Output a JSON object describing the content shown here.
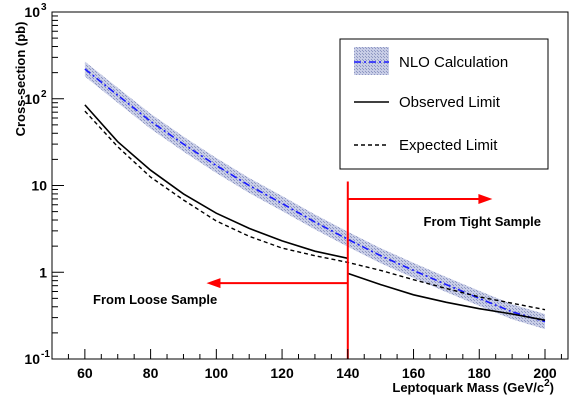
{
  "chart_data": {
    "type": "line",
    "xlabel": "Leptoquark Mass (GeV/c",
    "xlabel_sup": "2",
    "xlabel_close": ")",
    "ylabel": "Cross-section (pb)",
    "xlim": [
      50,
      207
    ],
    "ylim": [
      0.1,
      1000
    ],
    "y_scale": "log",
    "x_ticks": [
      60,
      80,
      100,
      120,
      140,
      160,
      180,
      200
    ],
    "x_tick_labels": [
      "60",
      "80",
      "100",
      "120",
      "140",
      "160",
      "180",
      "200"
    ],
    "y_ticks": [
      {
        "value": 0.1,
        "base": "10",
        "exp": "-1"
      },
      {
        "value": 1,
        "base": "1",
        "exp": ""
      },
      {
        "value": 10,
        "base": "10",
        "exp": ""
      },
      {
        "value": 100,
        "base": "10",
        "exp": "2"
      },
      {
        "value": 1000,
        "base": "10",
        "exp": "3"
      }
    ],
    "grid": false,
    "legend_position": "top-right",
    "series": [
      {
        "name": "NLO Calculation",
        "style": "band-dashdot",
        "color": "#1a1aff",
        "band_color": "#b0b8d6",
        "x": [
          60,
          70,
          80,
          90,
          100,
          110,
          120,
          130,
          140,
          150,
          160,
          170,
          180,
          190,
          200
        ],
        "y": [
          220,
          110,
          55,
          30,
          17,
          10,
          6.2,
          3.8,
          2.4,
          1.55,
          1.05,
          0.72,
          0.5,
          0.35,
          0.27
        ],
        "band_factor": 1.22
      },
      {
        "name": "Observed Limit",
        "style": "solid",
        "color": "#000000",
        "x": [
          60,
          70,
          80,
          90,
          100,
          110,
          120,
          130,
          140
        ],
        "y": [
          85,
          32,
          15,
          8,
          4.8,
          3.2,
          2.3,
          1.75,
          1.45
        ]
      },
      {
        "name": "Observed Limit (tight)",
        "style": "solid",
        "color": "#000000",
        "x": [
          140,
          150,
          160,
          170,
          180,
          190,
          200
        ],
        "y": [
          0.97,
          0.72,
          0.55,
          0.45,
          0.38,
          0.33,
          0.28
        ]
      },
      {
        "name": "Expected Limit",
        "style": "dashed",
        "color": "#000000",
        "x": [
          60,
          70,
          80,
          90,
          100,
          110,
          120,
          130,
          140,
          150,
          160,
          170,
          180,
          190,
          200
        ],
        "y": [
          72,
          28,
          12.5,
          6.8,
          3.9,
          2.6,
          1.9,
          1.55,
          1.3,
          1.05,
          0.82,
          0.65,
          0.52,
          0.44,
          0.37
        ]
      }
    ],
    "legend": [
      {
        "label": "NLO Calculation",
        "key": "band"
      },
      {
        "label": "Observed Limit",
        "key": "solid"
      },
      {
        "label": "Expected Limit",
        "key": "dashed"
      }
    ],
    "annotations": {
      "divider_x": 140,
      "divider_color": "#ff0000",
      "tight_label": "From Tight Sample",
      "loose_label": "From Loose Sample",
      "tight_arrow": {
        "x_from": 140,
        "x_to": 184,
        "y": 7
      },
      "loose_arrow": {
        "x_from": 140,
        "x_to": 97,
        "y": 0.75
      }
    }
  }
}
